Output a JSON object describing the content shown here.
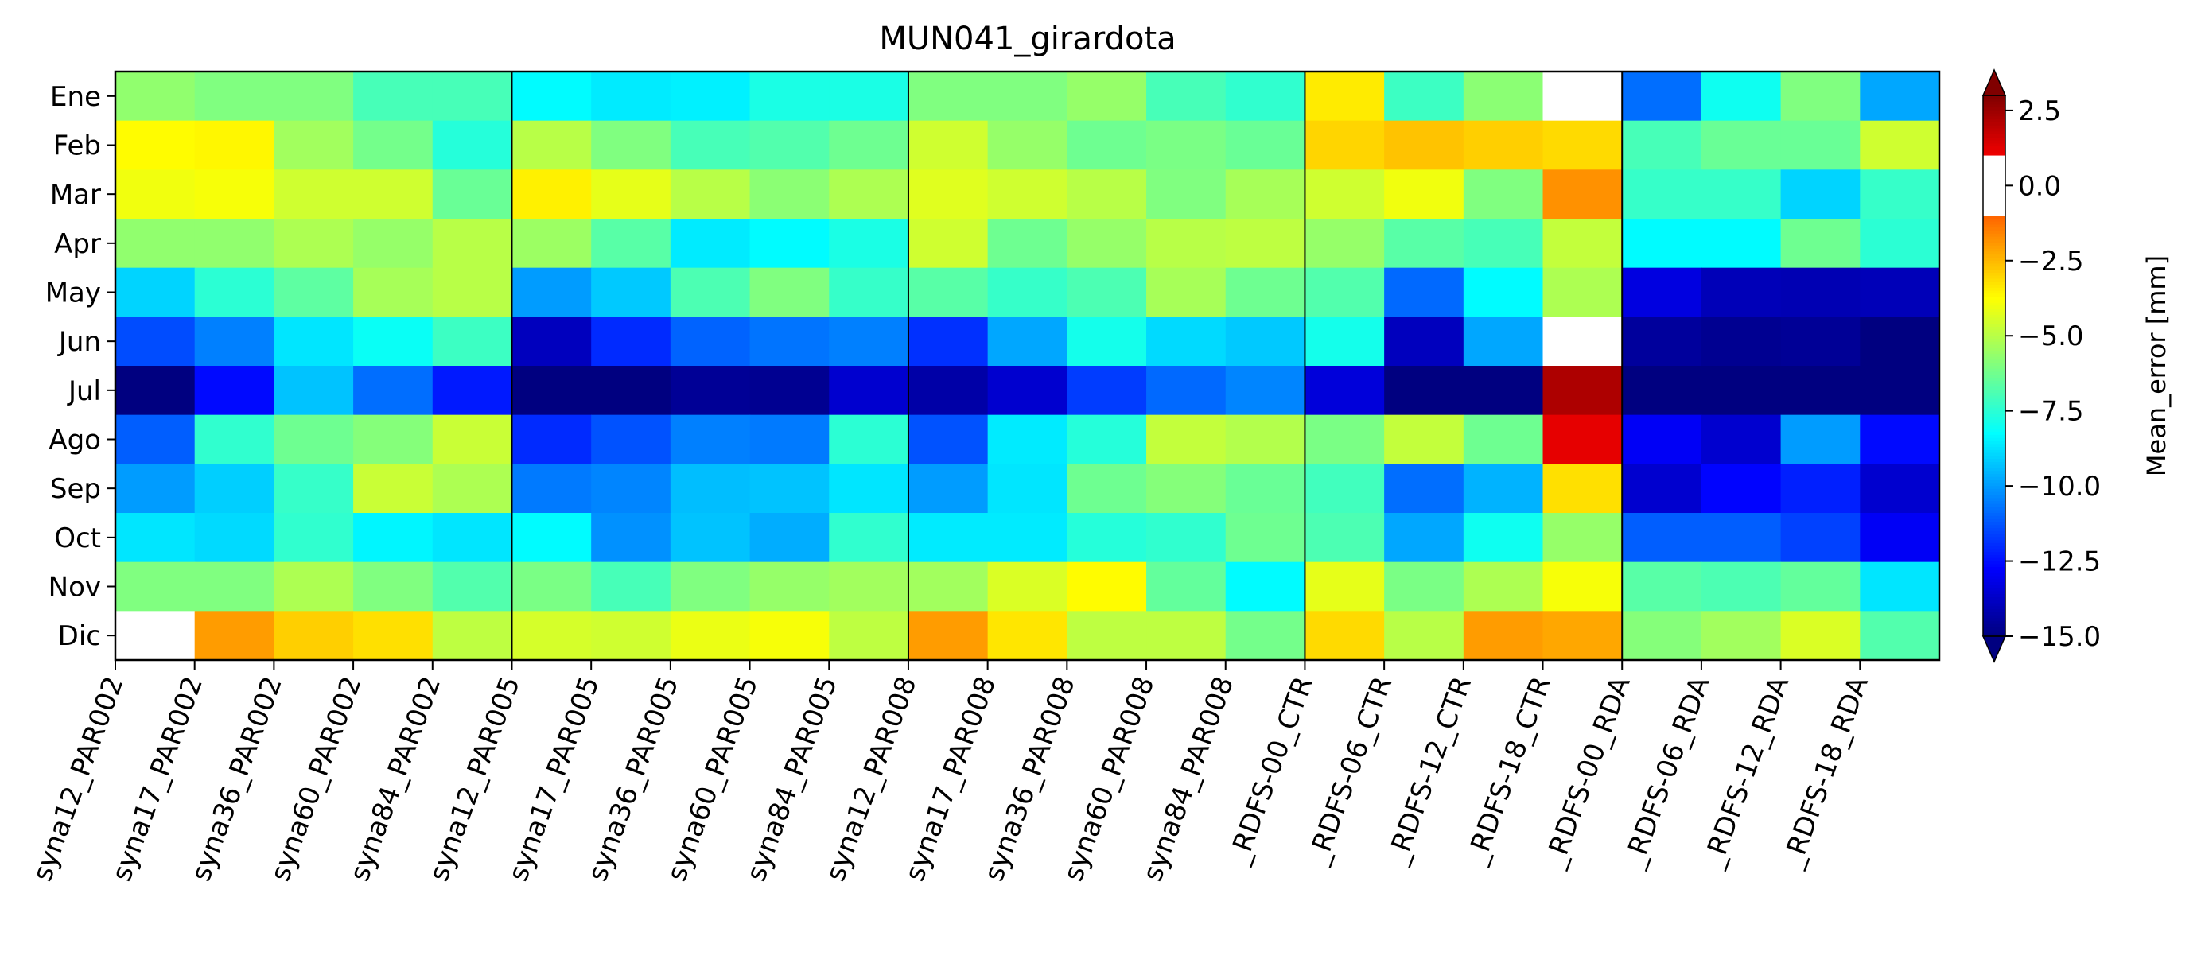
{
  "chart_data": {
    "type": "heatmap",
    "title": "MUN041_girardota",
    "colorbar_label": "Mean_error [mm]",
    "colorbar_ticks": [
      "2.5",
      "0.0",
      "−2.5",
      "−5.0",
      "−7.5",
      "−10.0",
      "−12.5",
      "−15.0"
    ],
    "colorbar_tick_values": [
      2.5,
      0.0,
      -2.5,
      -5.0,
      -7.5,
      -10.0,
      -12.5,
      -15.0
    ],
    "value_range": [
      -15.0,
      3.0
    ],
    "group_separators_after_column": [
      5,
      10,
      15,
      19
    ],
    "rows": [
      "Ene",
      "Feb",
      "Mar",
      "Apr",
      "May",
      "Jun",
      "Jul",
      "Ago",
      "Sep",
      "Oct",
      "Nov",
      "Dic"
    ],
    "columns": [
      "syna12_PAR002",
      "syna17_PAR002",
      "syna36_PAR002",
      "syna60_PAR002",
      "syna84_PAR002",
      "syna12_PAR005",
      "syna17_PAR005",
      "syna36_PAR005",
      "syna60_PAR005",
      "syna84_PAR005",
      "syna12_PAR008",
      "syna17_PAR008",
      "syna36_PAR008",
      "syna60_PAR008",
      "syna84_PAR008",
      "_RDFS-00_CTR",
      "_RDFS-06_CTR",
      "_RDFS-12_CTR",
      "_RDFS-18_CTR",
      "_RDFS-00_RDA",
      "_RDFS-06_RDA",
      "_RDFS-12_RDA",
      "_RDFS-18_RDA"
    ],
    "values": [
      [
        -5.7,
        -6.0,
        -6.0,
        -7.0,
        -7.0,
        -8.3,
        -8.6,
        -8.5,
        -7.8,
        -7.8,
        -6.0,
        -6.0,
        -5.6,
        -7.0,
        -7.4,
        -3.4,
        -7.2,
        -5.8,
        0.4,
        -10.8,
        -8.0,
        -6.0,
        -9.8
      ],
      [
        -3.7,
        -3.6,
        -5.4,
        -6.2,
        -7.6,
        -5.0,
        -6.0,
        -7.0,
        -6.8,
        -6.3,
        -4.6,
        -5.6,
        -6.3,
        -6.1,
        -6.4,
        -3.0,
        -2.7,
        -2.9,
        -3.1,
        -7.0,
        -6.4,
        -6.4,
        -4.6
      ],
      [
        -4.0,
        -3.9,
        -4.6,
        -4.6,
        -6.4,
        -3.5,
        -4.2,
        -5.0,
        -5.8,
        -5.2,
        -4.3,
        -4.6,
        -5.0,
        -6.0,
        -5.3,
        -4.6,
        -4.0,
        -6.0,
        -1.8,
        -7.3,
        -7.3,
        -9.0,
        -7.3
      ],
      [
        -5.7,
        -5.7,
        -5.2,
        -5.6,
        -5.0,
        -5.5,
        -6.7,
        -8.6,
        -8.3,
        -7.8,
        -4.6,
        -6.3,
        -5.6,
        -5.0,
        -4.9,
        -5.6,
        -6.7,
        -7.0,
        -4.8,
        -8.3,
        -8.3,
        -6.3,
        -7.5
      ],
      [
        -9.0,
        -7.5,
        -6.6,
        -5.3,
        -5.0,
        -10.0,
        -9.2,
        -6.9,
        -6.0,
        -7.3,
        -6.7,
        -7.3,
        -6.9,
        -5.3,
        -6.3,
        -6.8,
        -10.9,
        -8.3,
        -5.2,
        -13.3,
        -14.0,
        -14.1,
        -14.0
      ],
      [
        -11.4,
        -10.5,
        -8.7,
        -8.1,
        -7.2,
        -13.9,
        -12.0,
        -11.0,
        -10.7,
        -10.5,
        -11.9,
        -9.8,
        -7.9,
        -8.9,
        -9.2,
        -7.9,
        -13.9,
        -9.8,
        0.4,
        -14.5,
        -14.7,
        -14.6,
        -15.0
      ],
      [
        -15.0,
        -12.6,
        -9.3,
        -10.8,
        -12.3,
        -15.2,
        -15.2,
        -14.6,
        -14.7,
        -13.6,
        -14.3,
        -13.6,
        -11.7,
        -10.9,
        -10.4,
        -13.4,
        -15.1,
        -15.1,
        2.2,
        -15.1,
        -15.1,
        -15.2,
        -15.2
      ],
      [
        -11.1,
        -7.4,
        -6.3,
        -5.9,
        -4.7,
        -12.0,
        -11.3,
        -10.5,
        -10.6,
        -7.5,
        -11.3,
        -8.6,
        -7.6,
        -4.8,
        -5.1,
        -6.1,
        -4.8,
        -6.3,
        1.2,
        -12.9,
        -13.6,
        -10.0,
        -12.6
      ],
      [
        -10.0,
        -9.1,
        -7.3,
        -4.7,
        -5.2,
        -10.6,
        -10.4,
        -9.4,
        -9.3,
        -8.7,
        -10.0,
        -8.7,
        -6.3,
        -5.9,
        -6.4,
        -7.1,
        -10.8,
        -9.6,
        -3.2,
        -13.6,
        -12.7,
        -12.2,
        -13.6
      ],
      [
        -8.7,
        -8.9,
        -7.4,
        -8.4,
        -8.7,
        -8.3,
        -10.2,
        -9.3,
        -9.7,
        -7.4,
        -8.6,
        -8.6,
        -7.6,
        -7.4,
        -6.3,
        -6.9,
        -9.8,
        -8.0,
        -5.6,
        -11.1,
        -11.1,
        -11.6,
        -12.9
      ],
      [
        -6.0,
        -6.0,
        -5.2,
        -6.0,
        -6.8,
        -6.1,
        -7.0,
        -6.0,
        -5.6,
        -5.4,
        -5.4,
        -4.4,
        -3.7,
        -6.5,
        -8.3,
        -4.2,
        -6.1,
        -5.2,
        -3.9,
        -6.7,
        -6.9,
        -6.5,
        -8.7
      ],
      [
        0.5,
        -2.0,
        -2.9,
        -3.2,
        -4.9,
        -4.5,
        -4.6,
        -4.1,
        -3.9,
        -4.9,
        -2.0,
        -3.3,
        -4.9,
        -4.9,
        -6.2,
        -3.1,
        -5.0,
        -2.0,
        -2.2,
        -5.9,
        -5.4,
        -4.4,
        -6.8
      ]
    ]
  }
}
